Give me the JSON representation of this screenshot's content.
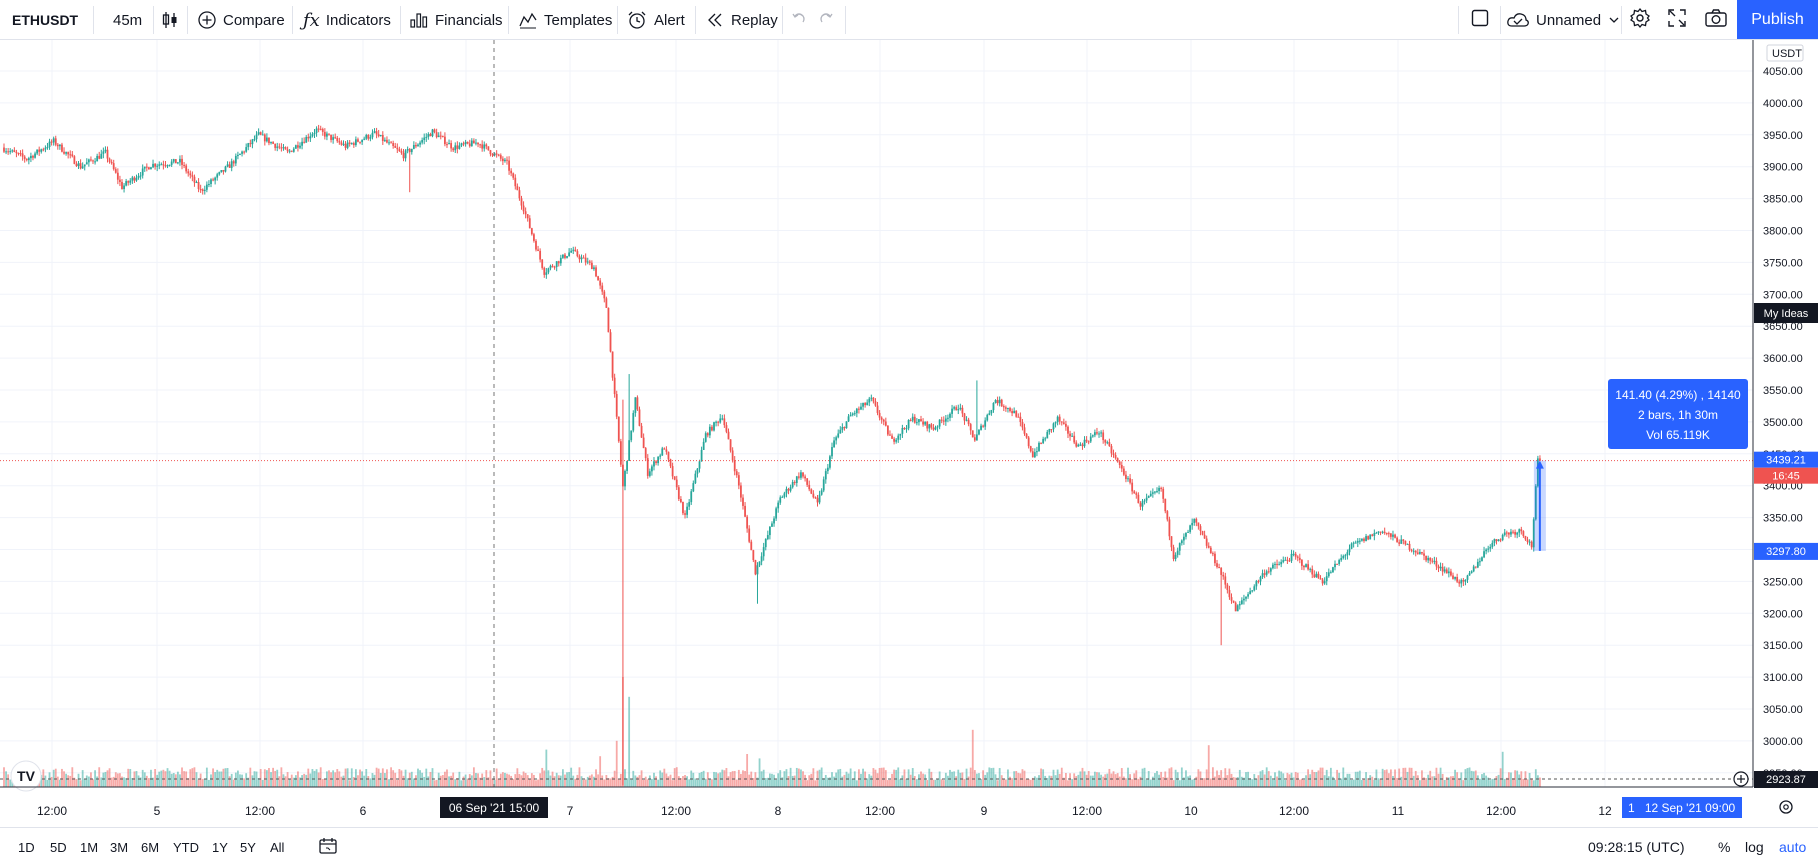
{
  "toolbar": {
    "symbol": "ETHUSDT",
    "interval": "45m",
    "compare": "Compare",
    "indicators": "Indicators",
    "financials": "Financials",
    "templates": "Templates",
    "alert": "Alert",
    "replay": "Replay",
    "layout_name": "Unnamed",
    "publish": "Publish"
  },
  "colors": {
    "up": "#26a69a",
    "down": "#ef5350",
    "accent": "#2962ff",
    "dark_label": "#131722"
  },
  "chart_data": {
    "type": "candlestick",
    "currency": "USDT",
    "y_ticks": [
      "4050.00",
      "4000.00",
      "3950.00",
      "3900.00",
      "3850.00",
      "3800.00",
      "3750.00",
      "3700.00",
      "3650.00",
      "3600.00",
      "3550.00",
      "3500.00",
      "3450.00",
      "3400.00",
      "3350.00",
      "3300.00",
      "3250.00",
      "3200.00",
      "3150.00",
      "3100.00",
      "3050.00",
      "3000.00",
      "2950.00"
    ],
    "x_ticks": [
      "12:00",
      "5",
      "12:00",
      "6",
      "12:00",
      "7",
      "12:00",
      "8",
      "12:00",
      "9",
      "12:00",
      "10",
      "12:00",
      "11",
      "12:00",
      "12"
    ],
    "current_price": "3439.21",
    "countdown": "16:45",
    "range_low_label": "3297.80",
    "low_marker": "2923.87",
    "crosshair_time": "06 Sep '21  15:00",
    "end_time": "12 Sep '21  09:00",
    "end_badge": "1",
    "my_ideas": "My Ideas",
    "measure": {
      "line1": "141.40 (4.29%) , 14140",
      "line2": "2 bars, 1h 30m",
      "line3": "Vol 65.119K"
    },
    "ylim": [
      2925,
      4075
    ],
    "waypoints": [
      [
        0,
        3930
      ],
      [
        12,
        3912
      ],
      [
        25,
        3940
      ],
      [
        38,
        3900
      ],
      [
        50,
        3922
      ],
      [
        58,
        3868
      ],
      [
        72,
        3903
      ],
      [
        86,
        3908
      ],
      [
        96,
        3862
      ],
      [
        110,
        3902
      ],
      [
        124,
        3950
      ],
      [
        138,
        3922
      ],
      [
        152,
        3958
      ],
      [
        166,
        3932
      ],
      [
        180,
        3952
      ],
      [
        194,
        3918
      ],
      [
        208,
        3955
      ],
      [
        218,
        3930
      ],
      [
        230,
        3938
      ],
      [
        244,
        3905
      ],
      [
        252,
        3835
      ],
      [
        262,
        3735
      ],
      [
        275,
        3768
      ],
      [
        286,
        3742
      ],
      [
        292,
        3680
      ],
      [
        300,
        3398
      ],
      [
        306,
        3535
      ],
      [
        312,
        3420
      ],
      [
        320,
        3460
      ],
      [
        330,
        3350
      ],
      [
        340,
        3480
      ],
      [
        348,
        3510
      ],
      [
        356,
        3400
      ],
      [
        364,
        3265
      ],
      [
        376,
        3380
      ],
      [
        386,
        3420
      ],
      [
        394,
        3370
      ],
      [
        402,
        3470
      ],
      [
        410,
        3510
      ],
      [
        420,
        3535
      ],
      [
        430,
        3470
      ],
      [
        440,
        3505
      ],
      [
        450,
        3490
      ],
      [
        462,
        3525
      ],
      [
        470,
        3472
      ],
      [
        480,
        3535
      ],
      [
        490,
        3512
      ],
      [
        498,
        3448
      ],
      [
        510,
        3505
      ],
      [
        520,
        3462
      ],
      [
        530,
        3485
      ],
      [
        542,
        3420
      ],
      [
        550,
        3370
      ],
      [
        560,
        3395
      ],
      [
        566,
        3290
      ],
      [
        576,
        3345
      ],
      [
        588,
        3270
      ],
      [
        596,
        3205
      ],
      [
        610,
        3265
      ],
      [
        624,
        3290
      ],
      [
        638,
        3250
      ],
      [
        652,
        3305
      ],
      [
        666,
        3330
      ],
      [
        682,
        3300
      ],
      [
        696,
        3270
      ],
      [
        706,
        3245
      ],
      [
        718,
        3305
      ],
      [
        726,
        3325
      ],
      [
        734,
        3330
      ],
      [
        739,
        3305
      ],
      [
        742,
        3439.21
      ]
    ],
    "volume_spikes": {
      "299": 1.0,
      "302": 0.82,
      "296": 0.42,
      "262": 0.34,
      "468": 0.52,
      "582": 0.38,
      "724": 0.32,
      "288": 0.28,
      "359": 0.3,
      "365": 0.26
    },
    "range_controls": [
      "1D",
      "5D",
      "1M",
      "3M",
      "6M",
      "YTD",
      "1Y",
      "5Y",
      "All"
    ],
    "clock": "09:28:15 (UTC)",
    "percent": "%",
    "log": "log",
    "auto": "auto"
  }
}
